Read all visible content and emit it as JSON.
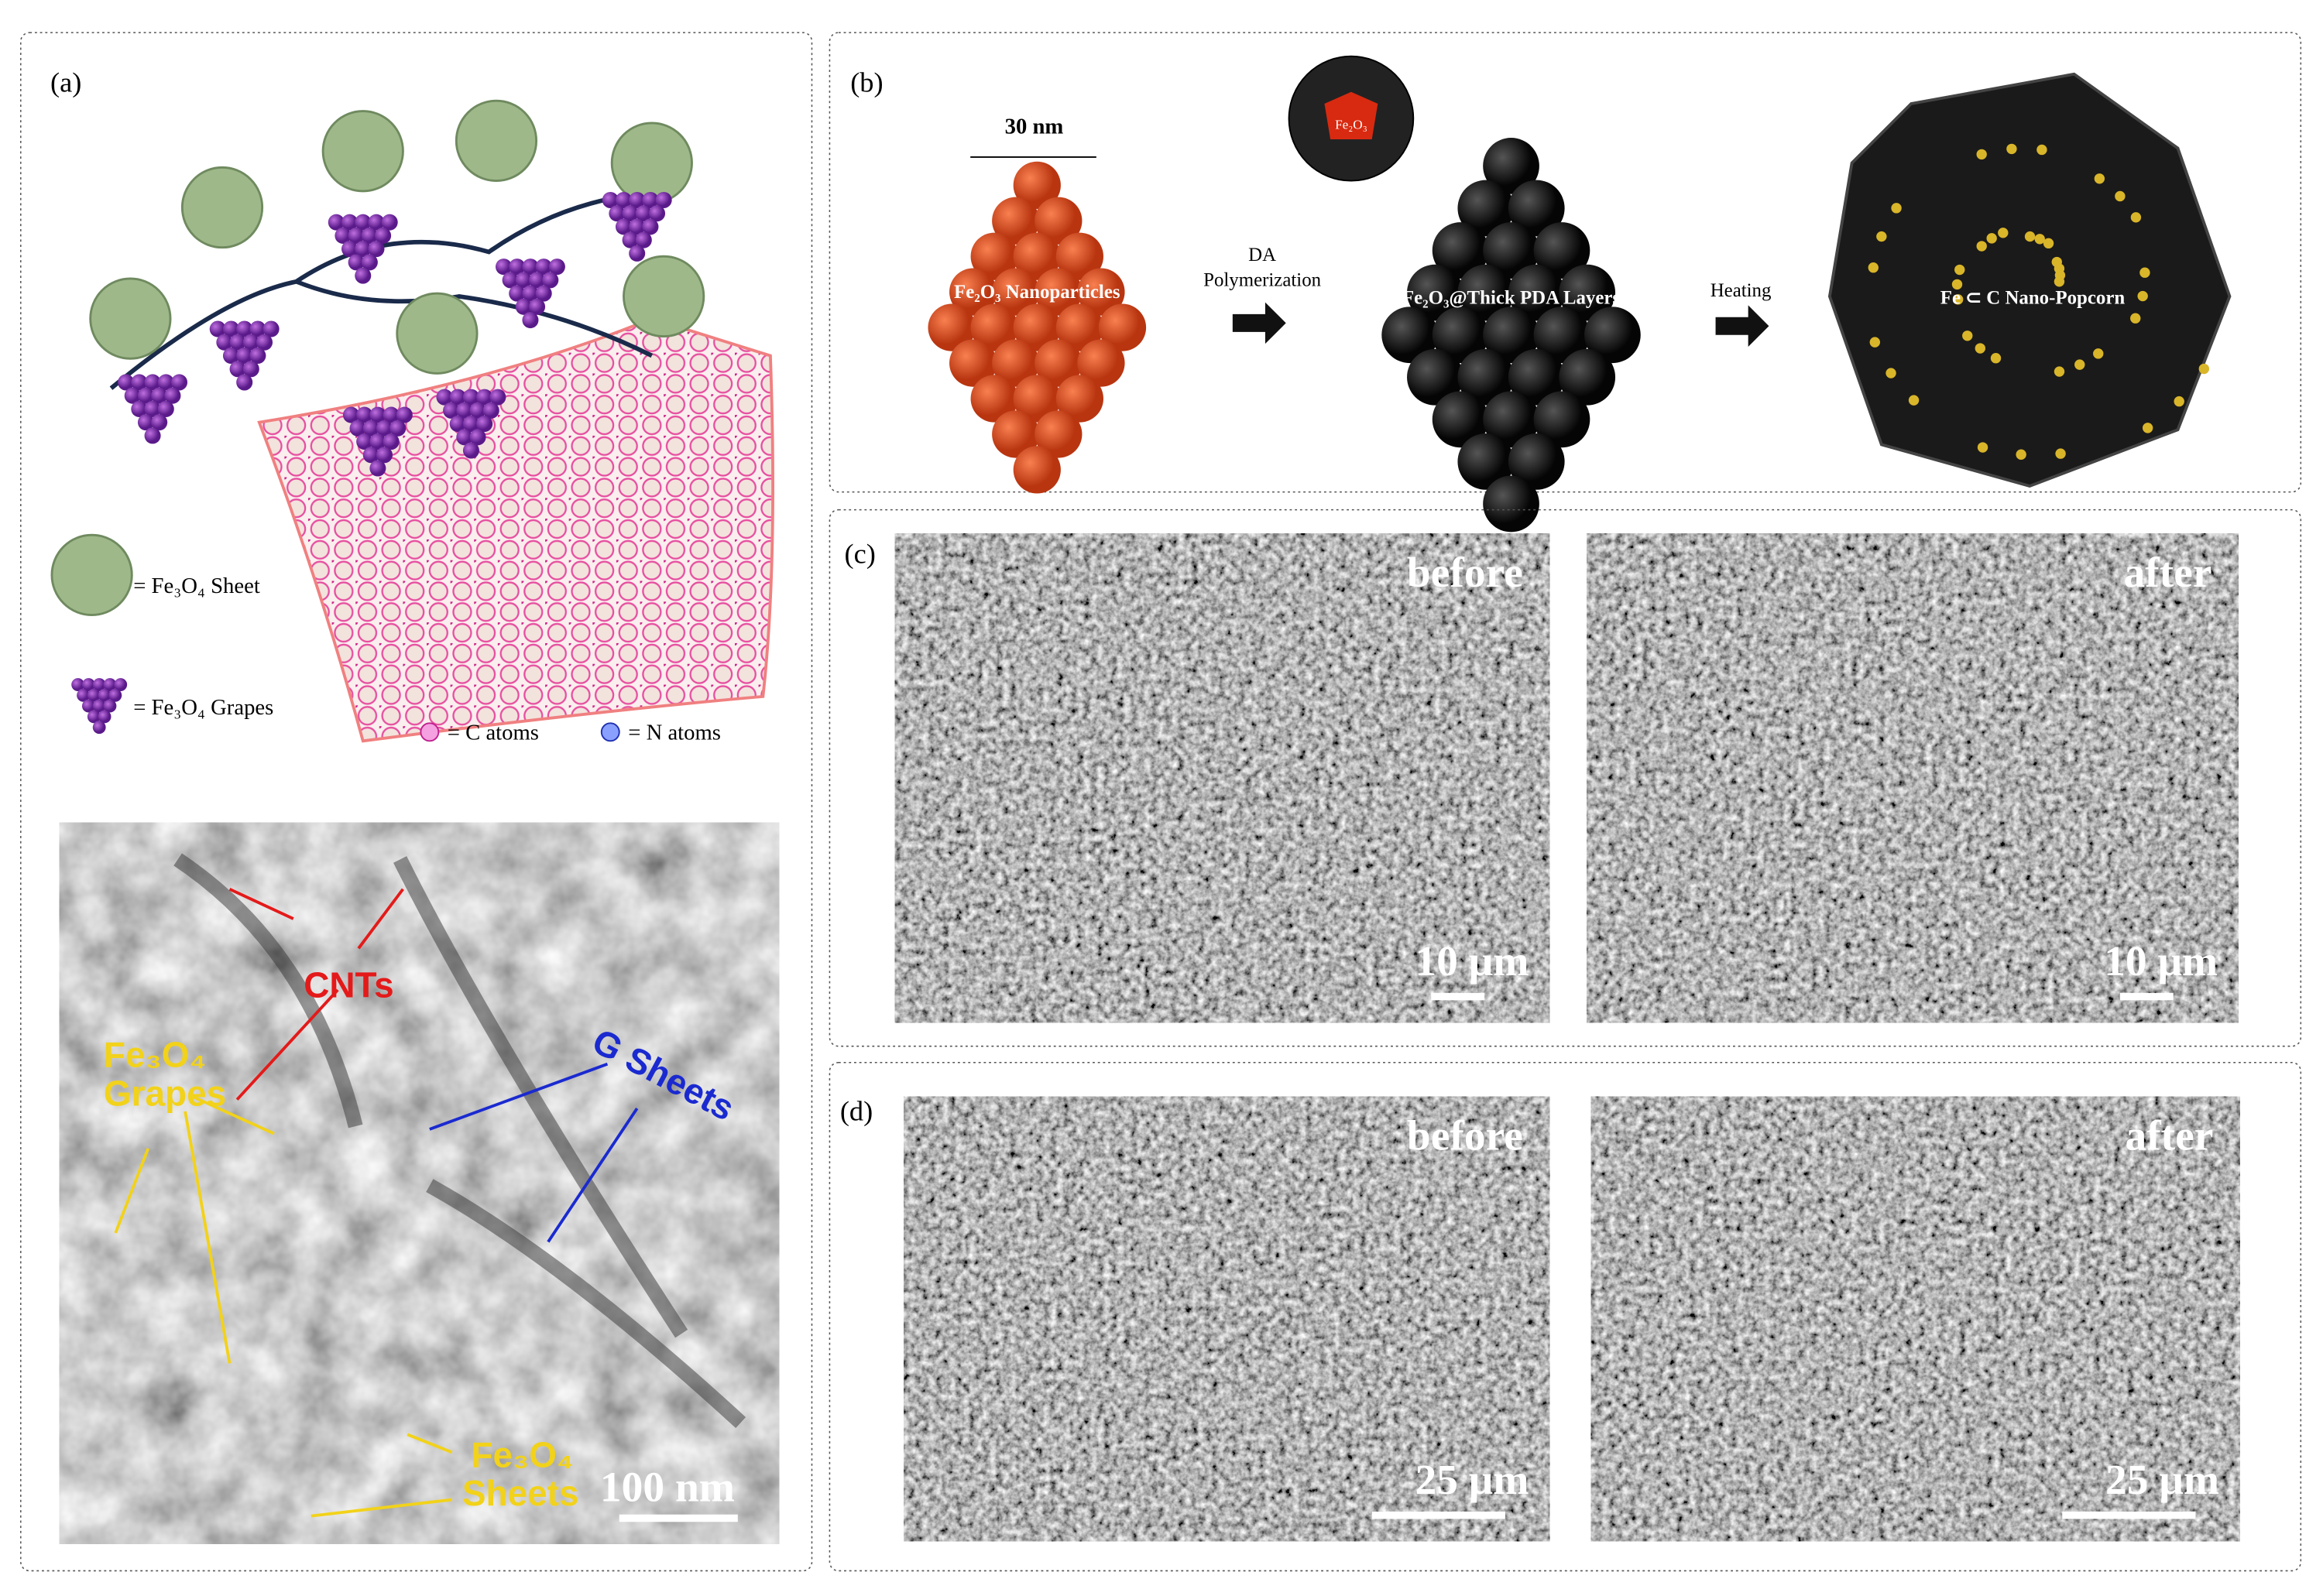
{
  "panel_a": {
    "label": "(a)",
    "legend": [
      "= Fe₃O₄ Sheet",
      "= Fe₃O₄ Grapes",
      "= C atoms",
      "= N atoms"
    ],
    "tem_labels": [
      "CNTs",
      "G Sheets",
      "Fe₃O₄",
      "Grapes",
      "Fe₃O₄",
      "Sheets"
    ],
    "scale_bar": "100 nm"
  },
  "panel_b": {
    "label": "(b)",
    "labels": [
      "30 nm",
      "Fe₂O₃ Nanoparticles",
      "DA",
      "Polymerization",
      "Fe₂O₃",
      "Fe₂O₃@Thick PDA Layers",
      "Heating",
      "Fe ⊂ C Nano-Popcorn"
    ]
  },
  "panel_c": {
    "label": "(c)",
    "images": [
      {
        "caption": "before",
        "scale_bar": "10 μm"
      },
      {
        "caption": "after",
        "scale_bar": "10 μm"
      }
    ]
  },
  "panel_d": {
    "label": "(d)",
    "images": [
      {
        "caption": "before",
        "scale_bar": "25 μm"
      },
      {
        "caption": "after",
        "scale_bar": "25 μm"
      }
    ]
  }
}
